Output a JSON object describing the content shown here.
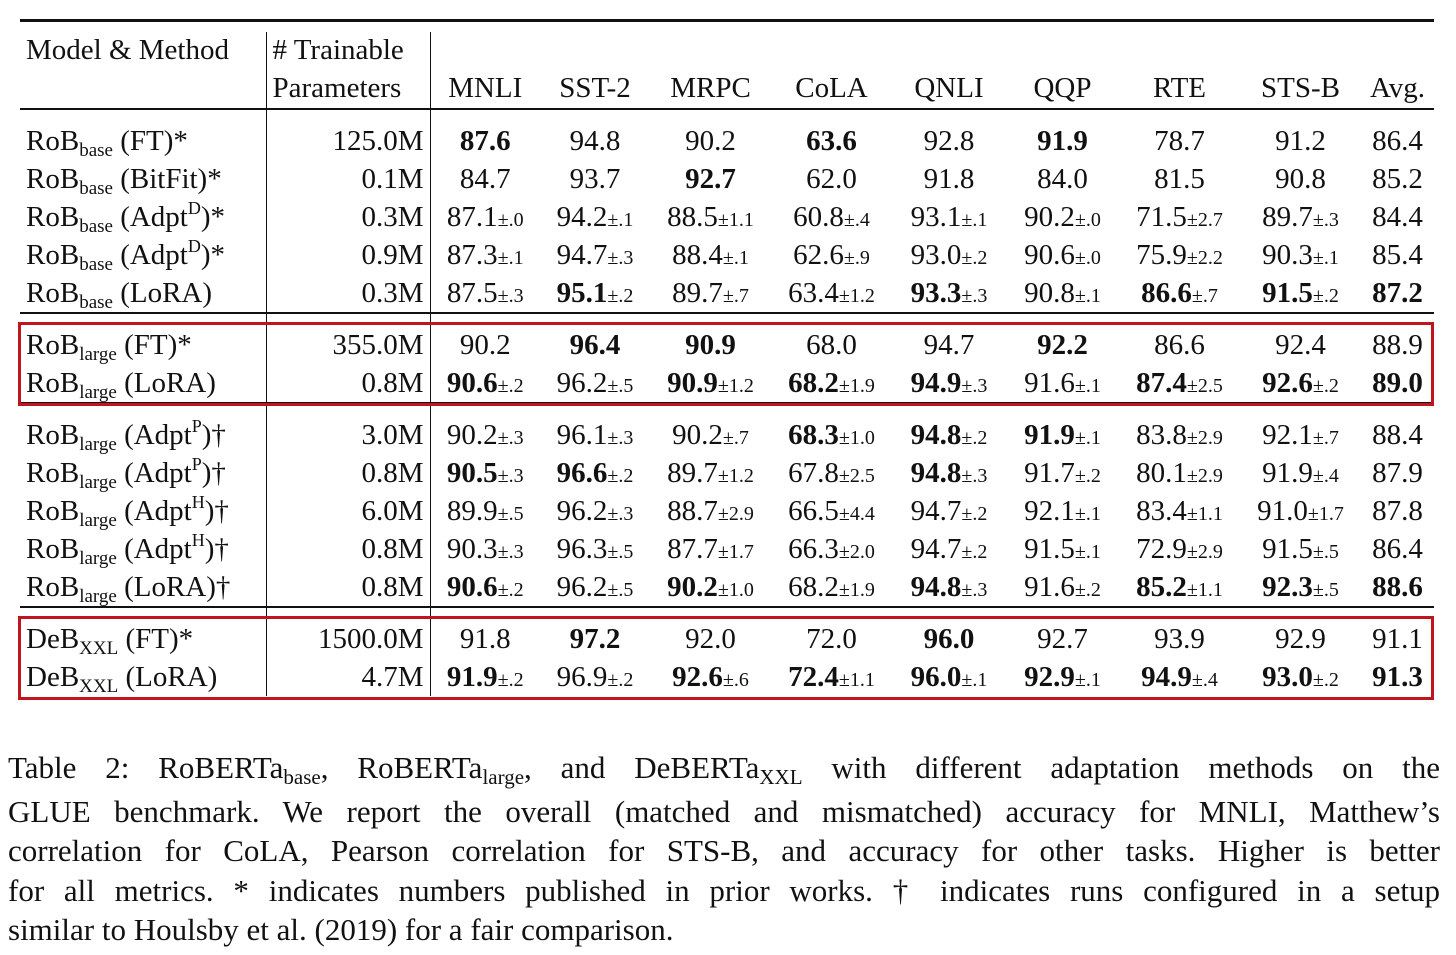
{
  "table": {
    "header": {
      "model_method": "Model & Method",
      "trainable_line1": "# Trainable",
      "trainable_line2": "Parameters",
      "columns": [
        "MNLI",
        "SST-2",
        "MRPC",
        "CoLA",
        "QNLI",
        "QQP",
        "RTE",
        "STS-B",
        "Avg."
      ]
    },
    "groups": [
      {
        "rows": [
          {
            "model": "RoB",
            "size": "base",
            "sup": "",
            "method": "(FT)*",
            "params": "125.0M",
            "cells": [
              {
                "v": "87.6",
                "b": true
              },
              {
                "v": "94.8"
              },
              {
                "v": "90.2"
              },
              {
                "v": "63.6",
                "b": true
              },
              {
                "v": "92.8"
              },
              {
                "v": "91.9",
                "b": true
              },
              {
                "v": "78.7"
              },
              {
                "v": "91.2"
              },
              {
                "v": "86.4"
              }
            ]
          },
          {
            "model": "RoB",
            "size": "base",
            "sup": "",
            "method": "(BitFit)*",
            "params": "0.1M",
            "cells": [
              {
                "v": "84.7"
              },
              {
                "v": "93.7"
              },
              {
                "v": "92.7",
                "b": true
              },
              {
                "v": "62.0"
              },
              {
                "v": "91.8"
              },
              {
                "v": "84.0"
              },
              {
                "v": "81.5"
              },
              {
                "v": "90.8"
              },
              {
                "v": "85.2"
              }
            ]
          },
          {
            "model": "RoB",
            "size": "base",
            "sup": "D",
            "method": "(Adpt",
            "method_end": ")*",
            "params": "0.3M",
            "cells": [
              {
                "v": "87.1",
                "pm": "±.0"
              },
              {
                "v": "94.2",
                "pm": "±.1"
              },
              {
                "v": "88.5",
                "pm": "±1.1"
              },
              {
                "v": "60.8",
                "pm": "±.4"
              },
              {
                "v": "93.1",
                "pm": "±.1"
              },
              {
                "v": "90.2",
                "pm": "±.0"
              },
              {
                "v": "71.5",
                "pm": "±2.7"
              },
              {
                "v": "89.7",
                "pm": "±.3"
              },
              {
                "v": "84.4"
              }
            ]
          },
          {
            "model": "RoB",
            "size": "base",
            "sup": "D",
            "method": "(Adpt",
            "method_end": ")*",
            "params": "0.9M",
            "cells": [
              {
                "v": "87.3",
                "pm": "±.1"
              },
              {
                "v": "94.7",
                "pm": "±.3"
              },
              {
                "v": "88.4",
                "pm": "±.1"
              },
              {
                "v": "62.6",
                "pm": "±.9"
              },
              {
                "v": "93.0",
                "pm": "±.2"
              },
              {
                "v": "90.6",
                "pm": "±.0"
              },
              {
                "v": "75.9",
                "pm": "±2.2"
              },
              {
                "v": "90.3",
                "pm": "±.1"
              },
              {
                "v": "85.4"
              }
            ]
          },
          {
            "model": "RoB",
            "size": "base",
            "sup": "",
            "method": "(LoRA)",
            "params": "0.3M",
            "cells": [
              {
                "v": "87.5",
                "pm": "±.3"
              },
              {
                "v": "95.1",
                "pm": "±.2",
                "b": true
              },
              {
                "v": "89.7",
                "pm": "±.7"
              },
              {
                "v": "63.4",
                "pm": "±1.2"
              },
              {
                "v": "93.3",
                "pm": "±.3",
                "b": true
              },
              {
                "v": "90.8",
                "pm": "±.1"
              },
              {
                "v": "86.6",
                "pm": "±.7",
                "b": true
              },
              {
                "v": "91.5",
                "pm": "±.2",
                "b": true
              },
              {
                "v": "87.2",
                "b": true
              }
            ]
          }
        ]
      },
      {
        "rows": [
          {
            "model": "RoB",
            "size": "large",
            "sup": "",
            "method": "(FT)*",
            "params": "355.0M",
            "cells": [
              {
                "v": "90.2"
              },
              {
                "v": "96.4",
                "b": true
              },
              {
                "v": "90.9",
                "b": true
              },
              {
                "v": "68.0"
              },
              {
                "v": "94.7"
              },
              {
                "v": "92.2",
                "b": true
              },
              {
                "v": "86.6"
              },
              {
                "v": "92.4"
              },
              {
                "v": "88.9"
              }
            ]
          },
          {
            "model": "RoB",
            "size": "large",
            "sup": "",
            "method": "(LoRA)",
            "params": "0.8M",
            "cells": [
              {
                "v": "90.6",
                "pm": "±.2",
                "b": true
              },
              {
                "v": "96.2",
                "pm": "±.5"
              },
              {
                "v": "90.9",
                "pm": "±1.2",
                "b": true
              },
              {
                "v": "68.2",
                "pm": "±1.9",
                "b": true
              },
              {
                "v": "94.9",
                "pm": "±.3",
                "b": true
              },
              {
                "v": "91.6",
                "pm": "±.1"
              },
              {
                "v": "87.4",
                "pm": "±2.5",
                "b": true
              },
              {
                "v": "92.6",
                "pm": "±.2",
                "b": true
              },
              {
                "v": "89.0",
                "b": true
              }
            ]
          }
        ]
      },
      {
        "rows": [
          {
            "model": "RoB",
            "size": "large",
            "sup": "P",
            "method": "(Adpt",
            "method_end": ")†",
            "params": "3.0M",
            "cells": [
              {
                "v": "90.2",
                "pm": "±.3"
              },
              {
                "v": "96.1",
                "pm": "±.3"
              },
              {
                "v": "90.2",
                "pm": "±.7"
              },
              {
                "v": "68.3",
                "pm": "±1.0",
                "b": true
              },
              {
                "v": "94.8",
                "pm": "±.2",
                "b": true
              },
              {
                "v": "91.9",
                "pm": "±.1",
                "b": true
              },
              {
                "v": "83.8",
                "pm": "±2.9"
              },
              {
                "v": "92.1",
                "pm": "±.7"
              },
              {
                "v": "88.4"
              }
            ]
          },
          {
            "model": "RoB",
            "size": "large",
            "sup": "P",
            "method": "(Adpt",
            "method_end": ")†",
            "params": "0.8M",
            "cells": [
              {
                "v": "90.5",
                "pm": "±.3",
                "b": true
              },
              {
                "v": "96.6",
                "pm": "±.2",
                "b": true
              },
              {
                "v": "89.7",
                "pm": "±1.2"
              },
              {
                "v": "67.8",
                "pm": "±2.5"
              },
              {
                "v": "94.8",
                "pm": "±.3",
                "b": true
              },
              {
                "v": "91.7",
                "pm": "±.2"
              },
              {
                "v": "80.1",
                "pm": "±2.9"
              },
              {
                "v": "91.9",
                "pm": "±.4"
              },
              {
                "v": "87.9"
              }
            ]
          },
          {
            "model": "RoB",
            "size": "large",
            "sup": "H",
            "method": "(Adpt",
            "method_end": ")†",
            "params": "6.0M",
            "cells": [
              {
                "v": "89.9",
                "pm": "±.5"
              },
              {
                "v": "96.2",
                "pm": "±.3"
              },
              {
                "v": "88.7",
                "pm": "±2.9"
              },
              {
                "v": "66.5",
                "pm": "±4.4"
              },
              {
                "v": "94.7",
                "pm": "±.2"
              },
              {
                "v": "92.1",
                "pm": "±.1"
              },
              {
                "v": "83.4",
                "pm": "±1.1"
              },
              {
                "v": "91.0",
                "pm": "±1.7"
              },
              {
                "v": "87.8"
              }
            ]
          },
          {
            "model": "RoB",
            "size": "large",
            "sup": "H",
            "method": "(Adpt",
            "method_end": ")†",
            "params": "0.8M",
            "cells": [
              {
                "v": "90.3",
                "pm": "±.3"
              },
              {
                "v": "96.3",
                "pm": "±.5"
              },
              {
                "v": "87.7",
                "pm": "±1.7"
              },
              {
                "v": "66.3",
                "pm": "±2.0"
              },
              {
                "v": "94.7",
                "pm": "±.2"
              },
              {
                "v": "91.5",
                "pm": "±.1"
              },
              {
                "v": "72.9",
                "pm": "±2.9"
              },
              {
                "v": "91.5",
                "pm": "±.5"
              },
              {
                "v": "86.4"
              }
            ]
          },
          {
            "model": "RoB",
            "size": "large",
            "sup": "",
            "method": "(LoRA)†",
            "params": "0.8M",
            "cells": [
              {
                "v": "90.6",
                "pm": "±.2",
                "b": true
              },
              {
                "v": "96.2",
                "pm": "±.5"
              },
              {
                "v": "90.2",
                "pm": "±1.0",
                "b": true
              },
              {
                "v": "68.2",
                "pm": "±1.9"
              },
              {
                "v": "94.8",
                "pm": "±.3",
                "b": true
              },
              {
                "v": "91.6",
                "pm": "±.2"
              },
              {
                "v": "85.2",
                "pm": "±1.1",
                "b": true
              },
              {
                "v": "92.3",
                "pm": "±.5",
                "b": true
              },
              {
                "v": "88.6",
                "b": true
              }
            ]
          }
        ]
      },
      {
        "rows": [
          {
            "model": "DeB",
            "size": "XXL",
            "sup": "",
            "method": "(FT)*",
            "params": "1500.0M",
            "cells": [
              {
                "v": "91.8"
              },
              {
                "v": "97.2",
                "b": true
              },
              {
                "v": "92.0"
              },
              {
                "v": "72.0"
              },
              {
                "v": "96.0",
                "b": true
              },
              {
                "v": "92.7"
              },
              {
                "v": "93.9"
              },
              {
                "v": "92.9"
              },
              {
                "v": "91.1"
              }
            ]
          },
          {
            "model": "DeB",
            "size": "XXL",
            "sup": "",
            "method": "(LoRA)",
            "params": "4.7M",
            "cells": [
              {
                "v": "91.9",
                "pm": "±.2",
                "b": true
              },
              {
                "v": "96.9",
                "pm": "±.2"
              },
              {
                "v": "92.6",
                "pm": "±.6",
                "b": true
              },
              {
                "v": "72.4",
                "pm": "±1.1",
                "b": true
              },
              {
                "v": "96.0",
                "pm": "±.1",
                "b": true
              },
              {
                "v": "92.9",
                "pm": "±.1",
                "b": true
              },
              {
                "v": "94.9",
                "pm": "±.4",
                "b": true
              },
              {
                "v": "93.0",
                "pm": "±.2",
                "b": true
              },
              {
                "v": "91.3",
                "b": true
              }
            ]
          }
        ]
      }
    ],
    "highlight_color": "#c0151f"
  },
  "caption": {
    "l1a": "Table 2: RoBERTa",
    "l1s1": "base",
    "l1b": ", RoBERTa",
    "l1s2": "large",
    "l1c": ", and DeBERTa",
    "l1s3": "XXL",
    "l1d": " with different adaptation methods on the",
    "l2": "GLUE benchmark. We report the overall (matched and mismatched) accuracy for MNLI, Matthew’s",
    "l3": "correlation for CoLA, Pearson correlation for STS-B, and accuracy for other tasks. Higher is better",
    "l4": "for all metrics. * indicates numbers published in prior works. † indicates runs configured in a setup",
    "l5": "similar to Houlsby et al. (2019) for a fair comparison."
  }
}
